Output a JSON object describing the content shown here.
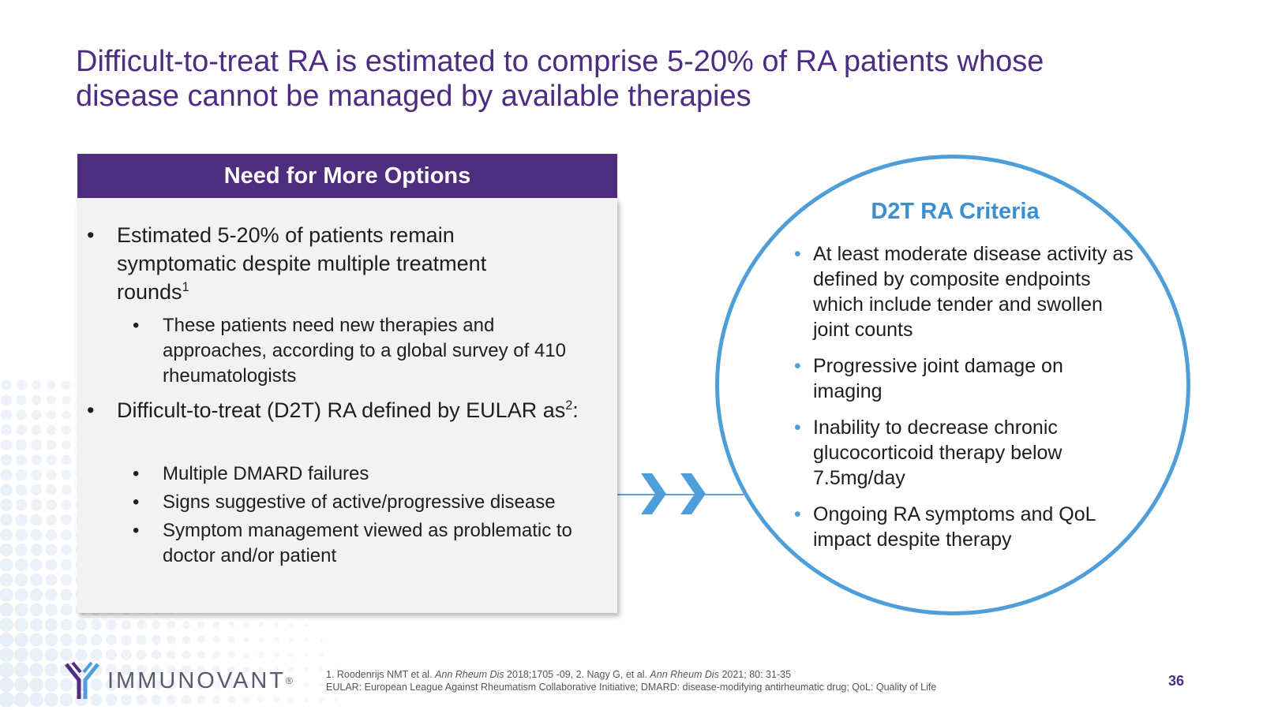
{
  "slide": {
    "title_line1": "Difficult-to-treat RA is estimated to comprise 5-20% of RA patients whose",
    "title_line2": "disease cannot be managed by available therapies",
    "page_number": "36"
  },
  "options": {
    "header": "Need for More Options",
    "bullet_char": "•",
    "b1_text": "Estimated 5-20% of patients remain symptomatic despite multiple treatment rounds",
    "b1_sup": "1",
    "b1_sub1": "These patients need new therapies and approaches, according to a global survey of 410 rheumatologists",
    "b2_text": "Difficult-to-treat (D2T) RA defined by EULAR as",
    "b2_sup": "2",
    "b2_colon": ":",
    "b2_sub1": "Multiple DMARD failures",
    "b2_sub2": "Signs suggestive of active/progressive disease",
    "b2_sub3": "Symptom management viewed as problematic to doctor and/or patient"
  },
  "criteria": {
    "title": "D2T RA Criteria",
    "bullet_char": "•",
    "items": [
      "At least moderate disease activity as defined by composite endpoints which include tender and swollen joint counts",
      "Progressive joint damage on imaging",
      "Inability to decrease chronic glucocorticoid therapy below 7.5mg/day",
      "Ongoing RA symptoms and QoL impact despite therapy"
    ]
  },
  "footer": {
    "logo_text": "IMMUNOVANT",
    "logo_reg": "®",
    "ref1_a": "1. Roodenrijs NMT et al. ",
    "ref1_b": "Ann Rheum Dis",
    "ref1_c": " 2018;1705 -09, 2. Nagy G, et al. ",
    "ref1_d": "Ann Rheum Dis",
    "ref1_e": " 2021; 80: 31-35",
    "ref2": "EULAR: European League Against Rheumatism Collaborative Initiative; DMARD: disease-modifying antirheumatic drug; QoL: Quality of Life"
  },
  "colors": {
    "title_purple": "#4d2d82",
    "header_purple": "#4f2d7f",
    "accent_blue": "#4e9fd9",
    "panel_gray": "#f2f2f2"
  }
}
